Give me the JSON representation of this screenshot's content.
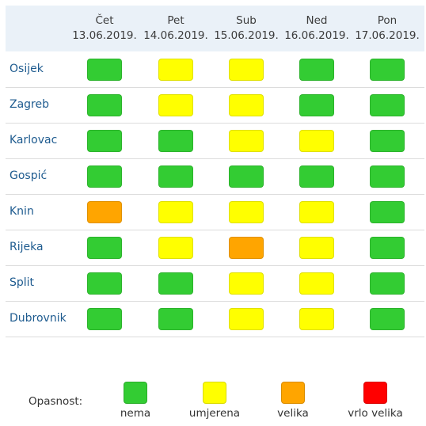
{
  "colors": {
    "nema": "#33cc33",
    "umjerena": "#ffff00",
    "velika": "#ffa500",
    "vrlo_velika": "#ff0000"
  },
  "days": [
    {
      "name": "Čet",
      "date": "13.06.2019."
    },
    {
      "name": "Pet",
      "date": "14.06.2019."
    },
    {
      "name": "Sub",
      "date": "15.06.2019."
    },
    {
      "name": "Ned",
      "date": "16.06.2019."
    },
    {
      "name": "Pon",
      "date": "17.06.2019."
    }
  ],
  "cities": [
    {
      "name": "Osijek",
      "levels": [
        "nema",
        "umjerena",
        "umjerena",
        "nema",
        "nema"
      ]
    },
    {
      "name": "Zagreb",
      "levels": [
        "nema",
        "umjerena",
        "umjerena",
        "nema",
        "nema"
      ]
    },
    {
      "name": "Karlovac",
      "levels": [
        "nema",
        "nema",
        "umjerena",
        "umjerena",
        "nema"
      ]
    },
    {
      "name": "Gospić",
      "levels": [
        "nema",
        "nema",
        "nema",
        "nema",
        "nema"
      ]
    },
    {
      "name": "Knin",
      "levels": [
        "velika",
        "umjerena",
        "umjerena",
        "umjerena",
        "nema"
      ]
    },
    {
      "name": "Rijeka",
      "levels": [
        "nema",
        "umjerena",
        "velika",
        "umjerena",
        "nema"
      ]
    },
    {
      "name": "Split",
      "levels": [
        "nema",
        "nema",
        "umjerena",
        "umjerena",
        "nema"
      ]
    },
    {
      "name": "Dubrovnik",
      "levels": [
        "nema",
        "nema",
        "umjerena",
        "umjerena",
        "nema"
      ]
    }
  ],
  "legend": {
    "title": "Opasnost:",
    "items": [
      {
        "key": "nema",
        "label": "nema"
      },
      {
        "key": "umjerena",
        "label": "umjerena"
      },
      {
        "key": "velika",
        "label": "velika"
      },
      {
        "key": "vrlo_velika",
        "label": "vrlo velika"
      }
    ]
  }
}
